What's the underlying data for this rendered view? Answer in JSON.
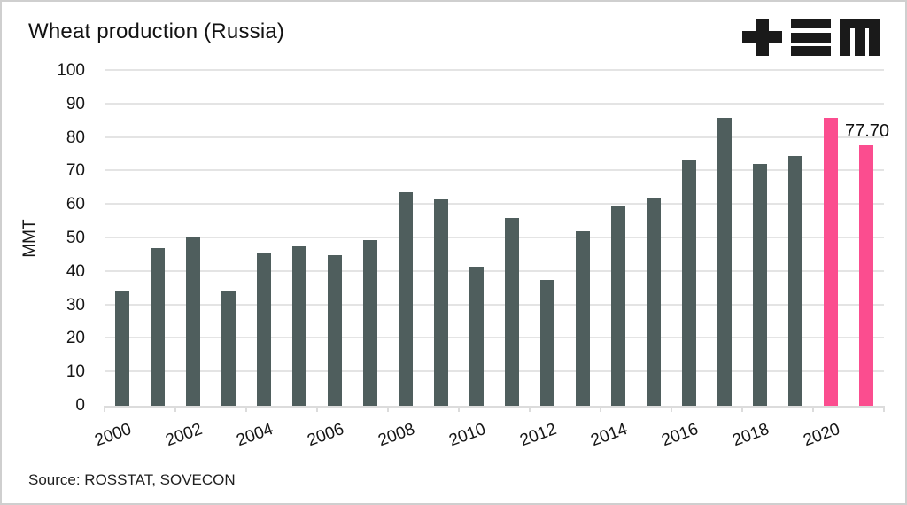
{
  "title": "Wheat production (Russia)",
  "source_note": "Source: ROSSTAT, SOVECON",
  "logo": {
    "glyphs": [
      "plus",
      "triple-bar",
      "m"
    ],
    "color": "#1a1a1a"
  },
  "colors": {
    "bar": "#4f5e5d",
    "highlight": "#fb4d8f",
    "gridline": "#e4e4e4",
    "axis": "#dcdcdc",
    "text": "#161616",
    "background": "#ffffff"
  },
  "chart_data": {
    "type": "bar",
    "title": "Wheat production (Russia)",
    "xlabel": "",
    "ylabel": "MMT",
    "ylim": [
      0,
      100
    ],
    "ytick_step": 10,
    "grid": true,
    "legend": false,
    "categories": [
      "2000",
      "2001",
      "2002",
      "2003",
      "2004",
      "2005",
      "2006",
      "2007",
      "2008",
      "2009",
      "2010",
      "2011",
      "2012",
      "2013",
      "2014",
      "2015",
      "2016",
      "2017",
      "2018",
      "2019",
      "2020",
      "2021"
    ],
    "values": [
      34.5,
      47.0,
      50.6,
      34.1,
      45.4,
      47.7,
      45.0,
      49.4,
      63.8,
      61.7,
      41.5,
      56.2,
      37.7,
      52.1,
      59.7,
      61.8,
      73.3,
      86.0,
      72.1,
      74.5,
      85.9,
      77.7
    ],
    "bar_color": "#4f5e5d",
    "highlight_color": "#fb4d8f",
    "highlight_categories": [
      "2020",
      "2021"
    ],
    "x_axis_tick_labels": [
      "2000",
      "2002",
      "2004",
      "2006",
      "2008",
      "2010",
      "2012",
      "2014",
      "2016",
      "2018",
      "2020"
    ],
    "annotation": {
      "text": "77.70",
      "category": "2021"
    }
  }
}
